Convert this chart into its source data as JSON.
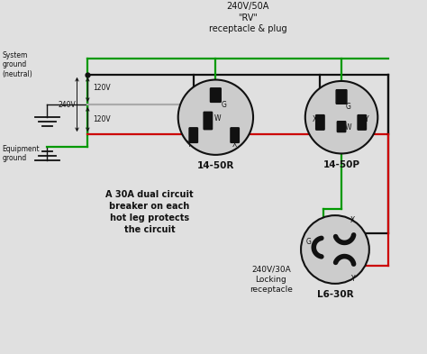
{
  "bg_color": "#e0e0e0",
  "title": "240V/50A\n\"RV\"\nreceptacle & plug",
  "label_1450R": "14-50R",
  "label_1450P": "14-50P",
  "label_L630R": "L6-30R",
  "label_240_30A": "240V/30A\nLocking\nreceptacle",
  "text_system_ground": "System\nground\n(neutral)",
  "text_equipment_ground": "Equipment\nground",
  "text_120V_top": "120V",
  "text_120V_bot": "120V",
  "text_240V": "240V",
  "text_note": "A 30A dual circuit\nbreaker on each\nhot leg protects\nthe circuit",
  "color_black": "#111111",
  "color_red": "#cc0000",
  "color_green": "#009900",
  "color_gray": "#aaaaaa",
  "color_white": "#ffffff",
  "color_circle": "#cccccc"
}
